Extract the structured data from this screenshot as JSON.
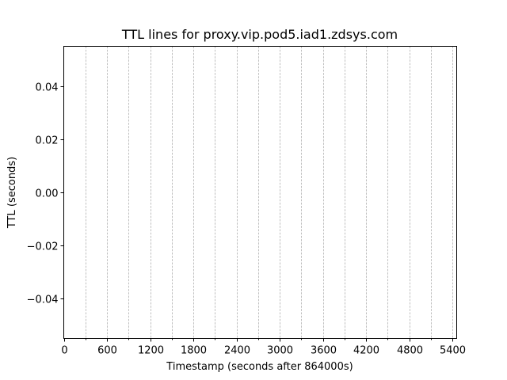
{
  "chart_data": {
    "type": "line",
    "title": "TTL lines for proxy.vip.pod5.iad1.zdsys.com",
    "xlabel": "Timestamp (seconds after 864000s)",
    "ylabel": "TTL (seconds)",
    "xlim": [
      0,
      5460
    ],
    "ylim": [
      -0.055,
      0.055
    ],
    "x_major_ticks": [
      0,
      600,
      1200,
      1800,
      2400,
      3000,
      3600,
      4200,
      4800,
      5400
    ],
    "x_tick_labels": [
      "0",
      "600",
      "1200",
      "1800",
      "2400",
      "3000",
      "3600",
      "4200",
      "4800",
      "5400"
    ],
    "x_minor_ticks": [
      300,
      900,
      1500,
      2100,
      2700,
      3300,
      3900,
      4500,
      5100
    ],
    "y_ticks": [
      -0.04,
      -0.02,
      0.0,
      0.02,
      0.04
    ],
    "y_tick_labels": [
      "−0.04",
      "−0.02",
      "0.00",
      "0.02",
      "0.04"
    ],
    "grid": "vertical dashed at x major and minor ticks",
    "series": []
  }
}
